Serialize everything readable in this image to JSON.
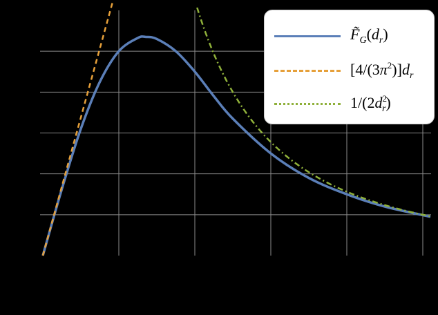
{
  "chart_data": {
    "type": "line",
    "title": "",
    "xlabel": "",
    "ylabel": "",
    "xlim": [
      0,
      5.1
    ],
    "ylim": [
      0,
      0.12
    ],
    "x_ticks": [
      0,
      1,
      2,
      3,
      4,
      5
    ],
    "y_ticks": [
      0,
      0.02,
      0.04,
      0.06,
      0.08,
      0.1
    ],
    "tick_labels_visible": false,
    "grid": true,
    "legend_position": "upper right",
    "series": [
      {
        "name": "F̃_G(d_r)",
        "label_html": "F̃<sub>G</sub>(d<sub>r</sub>)",
        "style": "solid",
        "color": "#5b7fb8",
        "x": [
          0,
          0.25,
          0.5,
          0.75,
          1.0,
          1.25,
          1.36,
          1.5,
          1.75,
          2.0,
          2.25,
          2.5,
          3.0,
          3.5,
          4.0,
          4.5,
          5.1
        ],
        "y": [
          0,
          0.0325,
          0.062,
          0.085,
          0.1,
          0.1065,
          0.107,
          0.106,
          0.1,
          0.09,
          0.078,
          0.067,
          0.05,
          0.038,
          0.03,
          0.024,
          0.019
        ]
      },
      {
        "name": "[4/(3π²)]d_r",
        "style": "dashed",
        "color": "#e6a03a",
        "x": [
          0,
          0.9
        ],
        "y": [
          0,
          0.1216
        ]
      },
      {
        "name": "1/(2d_r²)",
        "style": "dash-dot",
        "color": "#8fb03a",
        "x": [
          2.04,
          2.5,
          3.0,
          3.5,
          4.0,
          4.5,
          5.1
        ],
        "y": [
          0.12,
          0.08,
          0.0556,
          0.0408,
          0.03125,
          0.0247,
          0.0192
        ]
      }
    ]
  },
  "legend": {
    "items": [
      {
        "name": "F̃G(dr)",
        "color": "#5b7fb8",
        "style": "solid"
      },
      {
        "name": "[4/(3π2)]dr",
        "color": "#e6a03a",
        "style": "dashed"
      },
      {
        "name": "1/(2dr2)",
        "color": "#8fb03a",
        "style": "dash-dot"
      }
    ]
  },
  "colors": {
    "background": "#000000",
    "grid": "#8c8c8c",
    "legend_bg": "#ffffff"
  }
}
